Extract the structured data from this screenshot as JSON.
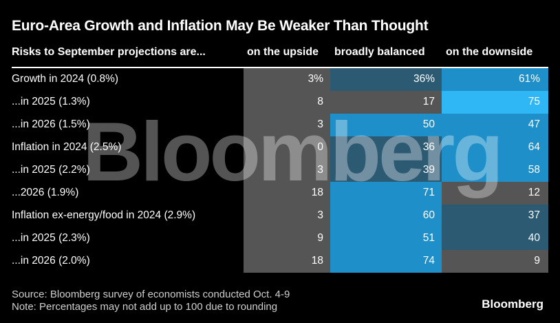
{
  "colors": {
    "background": "#000000",
    "neutral": "#555555",
    "pale_blue": "#2d5a73",
    "mid_blue": "#1e8fc8",
    "bright_blue": "#2fb6f5"
  },
  "chart_data": {
    "type": "table",
    "title": "Euro-Area Growth and Inflation May Be Weaker Than Thought",
    "row_header": "Risks to September projections are...",
    "columns": [
      "on the upside",
      "broadly balanced",
      "on the downside"
    ],
    "rows": [
      {
        "label": "Growth in 2024 (0.8%)",
        "values": [
          "3%",
          "36%",
          "61%"
        ]
      },
      {
        "label": "...in 2025 (1.3%)",
        "values": [
          "8",
          "17",
          "75"
        ]
      },
      {
        "label": "...in 2026 (1.5%)",
        "values": [
          "3",
          "50",
          "47"
        ]
      },
      {
        "label": "Inflation in 2024 (2.5%)",
        "values": [
          "0",
          "36",
          "64"
        ]
      },
      {
        "label": "...in 2025 (2.2%)",
        "values": [
          "3",
          "39",
          "58"
        ]
      },
      {
        "label": "...2026 (1.9%)",
        "values": [
          "18",
          "71",
          "12"
        ]
      },
      {
        "label": "Inflation ex-energy/food in 2024 (2.9%)",
        "values": [
          "3",
          "60",
          "37"
        ]
      },
      {
        "label": "...in 2025 (2.3%)",
        "values": [
          "9",
          "51",
          "40"
        ]
      },
      {
        "label": "...in 2026 (2.0%)",
        "values": [
          "18",
          "74",
          "9"
        ]
      }
    ],
    "source": "Source: Bloomberg survey of economists conducted Oct. 4-9",
    "note": "Note: Percentages may not add up to 100 due to rounding"
  },
  "watermark": "Bloomberg",
  "logo": "Bloomberg"
}
